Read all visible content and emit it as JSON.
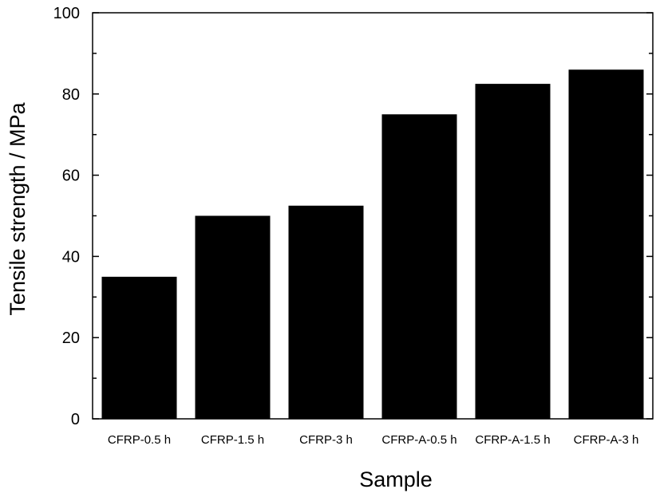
{
  "chart_data": {
    "type": "bar",
    "categories": [
      "CFRP-0.5 h",
      "CFRP-1.5 h",
      "CFRP-3 h",
      "CFRP-A-0.5 h",
      "CFRP-A-1.5 h",
      "CFRP-A-3 h"
    ],
    "values": [
      35,
      50,
      52.5,
      75,
      82.5,
      86
    ],
    "title": "",
    "xlabel": "Sample",
    "ylabel": "Tensile strength / MPa",
    "ylim": [
      0,
      100
    ],
    "yticks": [
      0,
      20,
      40,
      60,
      80,
      100
    ],
    "grid": false,
    "bar_color": "#000000"
  }
}
